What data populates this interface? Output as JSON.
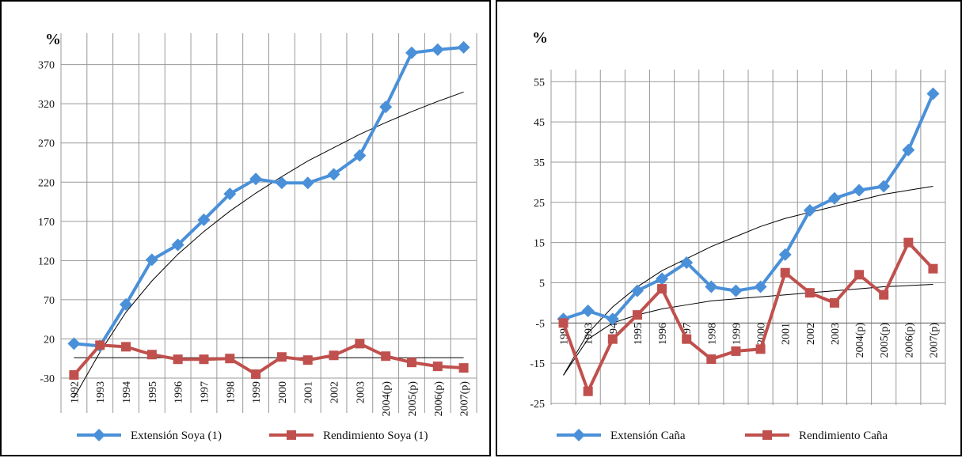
{
  "colors": {
    "series1": "#4a90d9",
    "series2": "#c0504d",
    "trend": "#000000",
    "grid": "#999999"
  },
  "chart_data": [
    {
      "type": "line",
      "y_unit_label": "%",
      "categories": [
        "1992",
        "1993",
        "1994",
        "1995",
        "1996",
        "1997",
        "1998",
        "1999",
        "2000",
        "2001",
        "2002",
        "2003",
        "2004(p)",
        "2005(p)",
        "2006(p)",
        "2007(p)"
      ],
      "yticks": [
        -30,
        20,
        70,
        120,
        170,
        220,
        270,
        320,
        370
      ],
      "ylim": [
        -30,
        410
      ],
      "series": [
        {
          "name": "Extensión Soya (1)",
          "marker": "diamond",
          "color": "#4a90d9",
          "values": [
            14,
            11,
            64,
            121,
            140,
            172,
            205,
            224,
            219,
            219,
            230,
            254,
            316,
            385,
            389,
            392
          ]
        },
        {
          "name": "Rendimiento Soya (1)",
          "marker": "square",
          "color": "#c0504d",
          "values": [
            -26,
            12,
            10,
            0,
            -6,
            -6,
            -5,
            -25,
            -3,
            -7,
            -1,
            14,
            -2,
            -10,
            -15,
            -17
          ]
        }
      ],
      "trendlines": [
        {
          "type": "logarithmic",
          "values": [
            -55,
            3,
            54,
            94,
            128,
            157,
            183,
            206,
            227,
            247,
            264,
            281,
            296,
            310,
            323,
            335
          ]
        },
        {
          "type": "linear",
          "values": [
            -4,
            -4,
            -4,
            -4,
            -4,
            -4,
            -4,
            -4,
            -4,
            -4,
            -4,
            -4,
            -4,
            -4,
            -4,
            -4
          ]
        }
      ],
      "legend_position": "bottom",
      "grid": true
    },
    {
      "type": "line",
      "y_unit_label": "%",
      "categories": [
        "1992",
        "1993",
        "1994",
        "1995",
        "1996",
        "1997",
        "1998",
        "1999",
        "2000",
        "2001",
        "2002",
        "2003",
        "2004(p)",
        "2005(p)",
        "2006(p)",
        "2007(p)"
      ],
      "yticks": [
        -25,
        -15,
        -5,
        5,
        15,
        25,
        35,
        45,
        55
      ],
      "ylim": [
        -25,
        58
      ],
      "series": [
        {
          "name": "Extensión Caña",
          "marker": "diamond",
          "color": "#4a90d9",
          "values": [
            -4,
            -2,
            -4,
            3,
            6,
            10,
            4,
            3,
            4,
            12,
            23,
            26,
            28,
            29,
            38,
            52
          ]
        },
        {
          "name": "Rendimiento Caña",
          "marker": "square",
          "color": "#c0504d",
          "values": [
            -5,
            -22,
            -9,
            -3,
            3.5,
            -9,
            -14,
            -12,
            -11.5,
            7.5,
            2.5,
            0,
            7,
            2,
            15,
            8.5
          ]
        }
      ],
      "trendlines": [
        {
          "type": "logarithmic",
          "values": [
            -18,
            -7.5,
            -1,
            4,
            8,
            11,
            14,
            16.5,
            19,
            21,
            22.5,
            24,
            25.5,
            27,
            28,
            29
          ]
        },
        {
          "type": "logarithmic",
          "values": [
            -18,
            -9,
            -5,
            -3,
            -1.5,
            -0.5,
            0.5,
            1,
            1.5,
            2,
            2.5,
            3,
            3.5,
            4,
            4.3,
            4.6
          ]
        }
      ],
      "legend_position": "bottom",
      "grid": true
    }
  ]
}
